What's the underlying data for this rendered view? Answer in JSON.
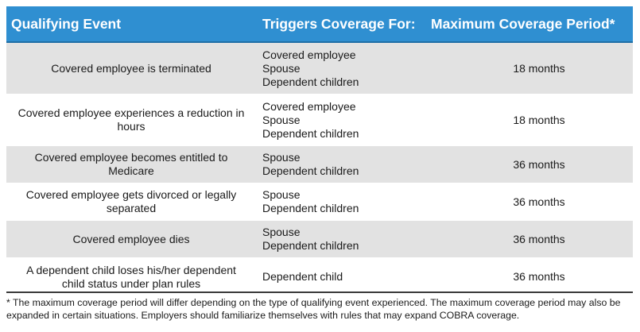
{
  "header": {
    "col1": "Qualifying Event",
    "col2": "Triggers Coverage For:",
    "col3": "Maximum Coverage Period*"
  },
  "rows": [
    {
      "event": [
        "Covered employee is terminated"
      ],
      "triggers": [
        "Covered employee",
        "Spouse",
        "Dependent children"
      ],
      "period": "18 months"
    },
    {
      "event": [
        "Covered employee experiences a reduction in",
        "hours"
      ],
      "triggers": [
        "Covered employee",
        "Spouse",
        "Dependent children"
      ],
      "period": "18 months"
    },
    {
      "event": [
        "Covered employee becomes entitled to",
        "Medicare"
      ],
      "triggers": [
        "Spouse",
        "Dependent children"
      ],
      "period": "36 months"
    },
    {
      "event": [
        "Covered employee gets divorced or legally",
        "separated"
      ],
      "triggers": [
        "Spouse",
        "Dependent children"
      ],
      "period": "36 months"
    },
    {
      "event": [
        "Covered employee dies"
      ],
      "triggers": [
        "Spouse",
        "Dependent children"
      ],
      "period": "36 months"
    },
    {
      "event": [
        "A dependent child loses his/her dependent",
        "child status under plan rules"
      ],
      "triggers": [
        "Dependent child"
      ],
      "period": "36 months"
    }
  ],
  "footnote": "* The maximum coverage period will differ depending on the type of qualifying event experienced. The maximum coverage period may also be expanded in certain situations. Employers should familiarize themselves with rules that may expand COBRA coverage.",
  "colors": {
    "header_bg": "#2f8fd1",
    "header_text": "#ffffff",
    "stripe_bg": "#e2e2e2"
  }
}
